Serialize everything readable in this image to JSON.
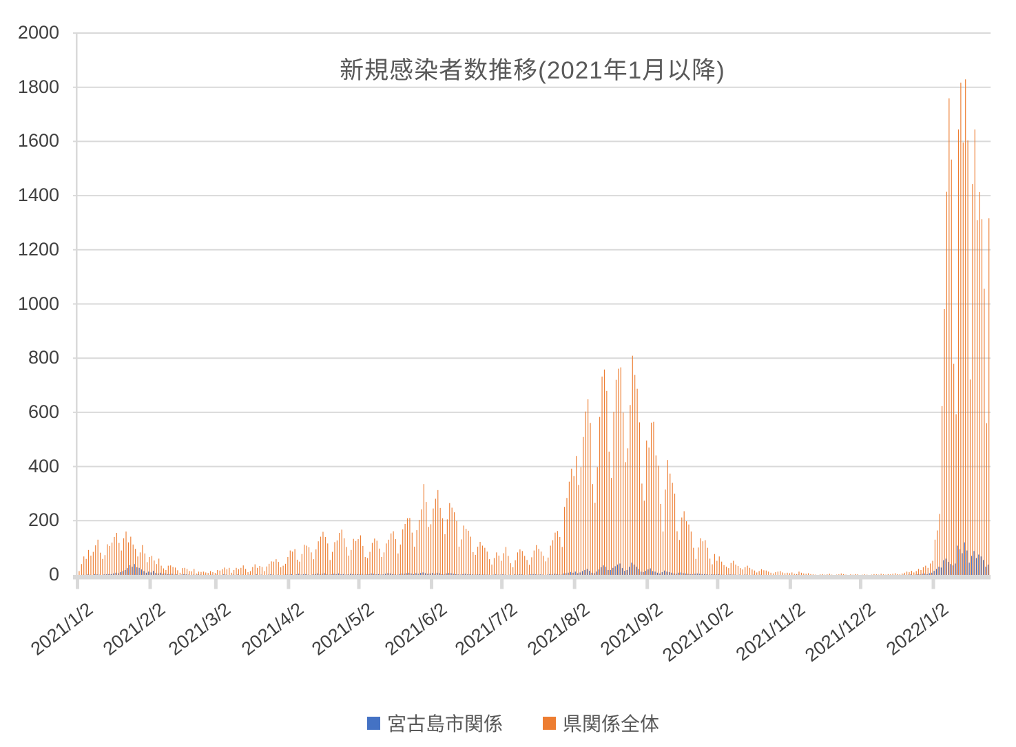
{
  "title": "新規感染者数推移(2021年1月以降)",
  "colors": {
    "series_blue": "#4472C4",
    "series_orange": "#ED7D31",
    "gridline": "#D9D9D9",
    "axis_text": "#404040",
    "title_text": "#595959"
  },
  "chart_data": {
    "type": "bar",
    "title": "新規感染者数推移(2021年1月以降)",
    "xlabel": "",
    "ylabel": "",
    "ylim": [
      0,
      2000
    ],
    "y_ticks": [
      0,
      200,
      400,
      600,
      800,
      1000,
      1200,
      1400,
      1600,
      1800,
      2000
    ],
    "grid": true,
    "legend_position": "bottom",
    "x_start_date": "2021/1/2",
    "x_frequency": "daily",
    "x_tick_labels": [
      "2021/1/2",
      "2021/2/2",
      "2021/3/2",
      "2021/4/2",
      "2021/5/2",
      "2021/6/2",
      "2021/7/2",
      "2021/8/2",
      "2021/9/2",
      "2021/10/2",
      "2021/11/2",
      "2021/12/2",
      "2022/1/2"
    ],
    "x_tick_day_index": [
      0,
      31,
      59,
      90,
      120,
      151,
      181,
      212,
      243,
      273,
      304,
      334,
      365
    ],
    "series": [
      {
        "name": "宮古島市関係",
        "color": "#4472C4",
        "values": [
          0,
          0,
          1,
          0,
          2,
          1,
          0,
          3,
          2,
          1,
          0,
          2,
          2,
          3,
          3,
          5,
          8,
          6,
          10,
          14,
          18,
          25,
          36,
          30,
          40,
          28,
          26,
          20,
          14,
          8,
          12,
          9,
          15,
          7,
          5,
          8,
          4,
          6,
          3,
          2,
          4,
          1,
          2,
          0,
          1,
          3,
          2,
          1,
          0,
          1,
          0,
          2,
          1,
          0,
          1,
          0,
          0,
          1,
          0,
          1,
          0,
          0,
          2,
          1,
          0,
          0,
          1,
          0,
          2,
          0,
          1,
          0,
          0,
          1,
          0,
          0,
          2,
          0,
          1,
          0,
          0,
          1,
          2,
          1,
          0,
          1,
          0,
          0,
          1,
          2,
          1,
          3,
          0,
          2,
          4,
          1,
          2,
          3,
          1,
          0,
          2,
          3,
          5,
          2,
          4,
          6,
          3,
          1,
          2,
          4,
          3,
          5,
          2,
          3,
          1,
          2,
          4,
          3,
          2,
          3,
          2,
          4,
          1,
          2,
          3,
          5,
          4,
          2,
          3,
          1,
          2,
          4,
          6,
          5,
          3,
          2,
          1,
          3,
          5,
          4,
          6,
          8,
          5,
          3,
          6,
          4,
          7,
          9,
          6,
          4,
          5,
          7,
          4,
          8,
          6,
          3,
          2,
          5,
          7,
          6,
          4,
          3,
          2,
          1,
          3,
          4,
          2,
          3,
          2,
          1,
          2,
          3,
          1,
          2,
          1,
          1,
          0,
          1,
          2,
          1,
          1,
          2,
          1,
          0,
          1,
          0,
          2,
          1,
          3,
          2,
          1,
          0,
          1,
          2,
          3,
          2,
          1,
          2,
          1,
          0,
          1,
          3,
          2,
          4,
          3,
          2,
          1,
          5,
          6,
          8,
          10,
          8,
          12,
          6,
          9,
          14,
          18,
          22,
          15,
          8,
          6,
          12,
          20,
          28,
          35,
          30,
          18,
          18,
          26,
          32,
          38,
          42,
          25,
          15,
          18,
          30,
          45,
          38,
          30,
          22,
          12,
          10,
          15,
          20,
          24,
          14,
          12,
          8,
          5,
          10,
          16,
          12,
          10,
          8,
          5,
          4,
          8,
          9,
          6,
          5,
          4,
          3,
          2,
          4,
          5,
          4,
          3,
          3,
          2,
          1,
          2,
          2,
          2,
          3,
          1,
          1,
          0,
          1,
          2,
          1,
          1,
          0,
          1,
          0,
          1,
          1,
          0,
          0,
          1,
          0,
          0,
          1,
          0,
          0,
          0,
          0,
          0,
          0,
          0,
          0,
          0,
          0,
          0,
          0,
          0,
          0,
          0,
          1,
          0,
          0,
          0,
          0,
          0,
          0,
          0,
          0,
          0,
          0,
          0,
          0,
          0,
          0,
          0,
          0,
          0,
          0,
          0,
          0,
          0,
          0,
          0,
          0,
          0,
          0,
          0,
          0,
          0,
          0,
          0,
          0,
          0,
          0,
          0,
          0,
          0,
          0,
          0,
          0,
          0,
          0,
          0,
          0,
          1,
          0,
          1,
          2,
          0,
          1,
          3,
          2,
          4,
          5,
          3,
          6,
          8,
          15,
          22,
          30,
          27,
          54,
          60,
          48,
          40,
          35,
          42,
          108,
          95,
          80,
          120,
          90,
          45,
          70,
          88,
          62,
          75,
          68,
          55,
          30,
          38
        ]
      },
      {
        "name": "県関係全体",
        "color": "#ED7D31",
        "values": [
          14,
          40,
          68,
          59,
          92,
          71,
          85,
          109,
          130,
          82,
          59,
          73,
          113,
          107,
          119,
          140,
          155,
          118,
          90,
          135,
          160,
          120,
          141,
          112,
          96,
          68,
          83,
          110,
          79,
          47,
          66,
          70,
          53,
          40,
          60,
          34,
          24,
          18,
          34,
          35,
          29,
          27,
          17,
          8,
          25,
          26,
          22,
          14,
          13,
          22,
          5,
          12,
          11,
          12,
          9,
          7,
          14,
          10,
          7,
          18,
          16,
          21,
          27,
          21,
          26,
          8,
          18,
          26,
          21,
          26,
          35,
          22,
          10,
          14,
          29,
          39,
          26,
          33,
          29,
          14,
          31,
          41,
          50,
          49,
          58,
          48,
          28,
          34,
          41,
          66,
          90,
          86,
          95,
          56,
          49,
          77,
          111,
          108,
          102,
          83,
          58,
          94,
          124,
          141,
          159,
          140,
          116,
          55,
          85,
          121,
          127,
          155,
          167,
          135,
          103,
          71,
          92,
          133,
          125,
          132,
          146,
          107,
          66,
          62,
          85,
          118,
          134,
          126,
          97,
          66,
          83,
          116,
          130,
          153,
          161,
          132,
          79,
          112,
          168,
          188,
          209,
          210,
          156,
          104,
          165,
          203,
          242,
          335,
          269,
          177,
          187,
          245,
          281,
          313,
          247,
          209,
          150,
          205,
          265,
          248,
          231,
          199,
          104,
          131,
          182,
          170,
          163,
          141,
          84,
          74,
          104,
          122,
          108,
          100,
          86,
          58,
          38,
          62,
          83,
          71,
          52,
          80,
          103,
          70,
          43,
          28,
          54,
          83,
          94,
          88,
          70,
          55,
          37,
          65,
          90,
          110,
          96,
          86,
          70,
          50,
          64,
          108,
          128,
          156,
          162,
          140,
          103,
          251,
          284,
          344,
          392,
          365,
          439,
          332,
          398,
          509,
          603,
          648,
          561,
          335,
          266,
          398,
          583,
          732,
          758,
          679,
          455,
          358,
          602,
          720,
          761,
          766,
          599,
          416,
          467,
          627,
          809,
          738,
          687,
          563,
          337,
          274,
          496,
          470,
          562,
          565,
          441,
          403,
          262,
          160,
          315,
          424,
          374,
          340,
          300,
          161,
          129,
          212,
          235,
          198,
          186,
          160,
          100,
          59,
          101,
          135,
          124,
          128,
          100,
          60,
          39,
          77,
          52,
          68,
          49,
          36,
          30,
          25,
          44,
          52,
          38,
          33,
          25,
          20,
          28,
          34,
          26,
          20,
          16,
          9,
          14,
          21,
          17,
          16,
          12,
          8,
          5,
          10,
          12,
          14,
          9,
          6,
          8,
          6,
          9,
          4,
          3,
          12,
          8,
          5,
          4,
          6,
          3,
          2,
          1,
          0,
          2,
          3,
          1,
          2,
          4,
          1,
          0,
          1,
          2,
          5,
          3,
          1,
          0,
          2,
          1,
          3,
          2,
          0,
          1,
          2,
          1,
          0,
          1,
          3,
          2,
          1,
          4,
          2,
          1,
          3,
          2,
          4,
          6,
          3,
          2,
          5,
          8,
          12,
          10,
          15,
          9,
          14,
          22,
          18,
          28,
          34,
          26,
          42,
          52,
          130,
          164,
          225,
          623,
          981,
          1414,
          1759,
          1533,
          779,
          593,
          1644,
          1817,
          1596,
          1829,
          1604,
          721,
          1443,
          1644,
          1309,
          1413,
          1313,
          1056,
          560,
          1316
        ]
      }
    ]
  },
  "legend": {
    "items": [
      {
        "label": "宮古島市関係",
        "color": "#4472C4"
      },
      {
        "label": "県関係全体",
        "color": "#ED7D31"
      }
    ]
  }
}
